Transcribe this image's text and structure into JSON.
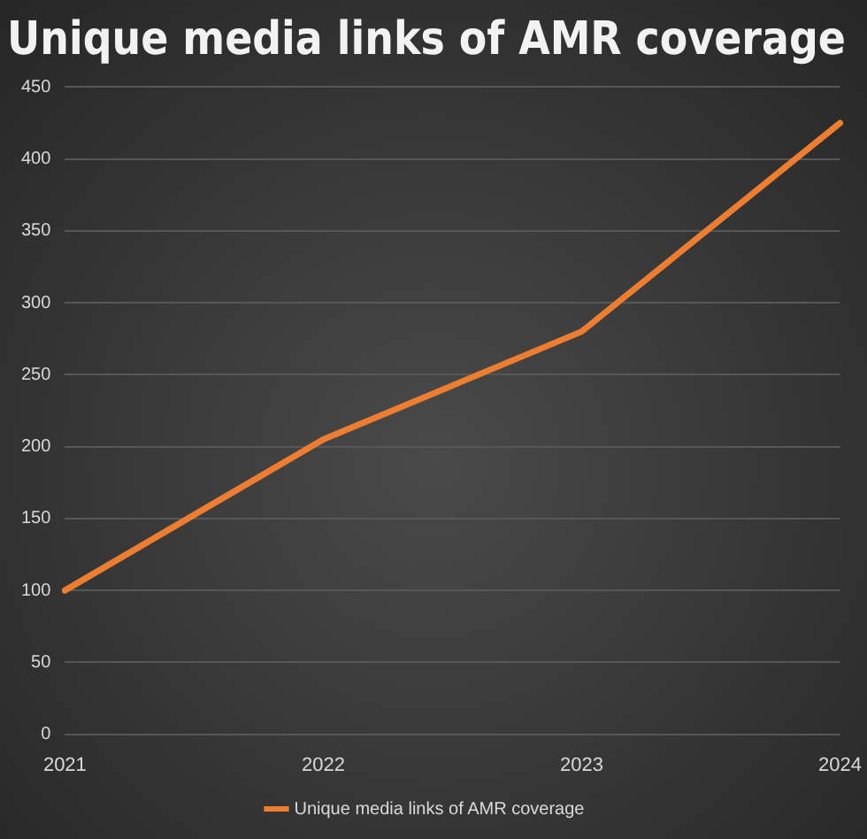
{
  "chart_data": {
    "type": "line",
    "title": "Unique media links of AMR coverage",
    "categories": [
      "2021",
      "2022",
      "2023",
      "2024"
    ],
    "series": [
      {
        "name": "Unique media links of AMR coverage",
        "color": "#ed7d31",
        "values": [
          100,
          205,
          280,
          425
        ]
      }
    ],
    "ylim": [
      0,
      450
    ],
    "yticks": [
      0,
      50,
      100,
      150,
      200,
      250,
      300,
      350,
      400,
      450
    ],
    "grid": "y",
    "legend": "bottom",
    "marker": "none",
    "line_style": "solid"
  }
}
